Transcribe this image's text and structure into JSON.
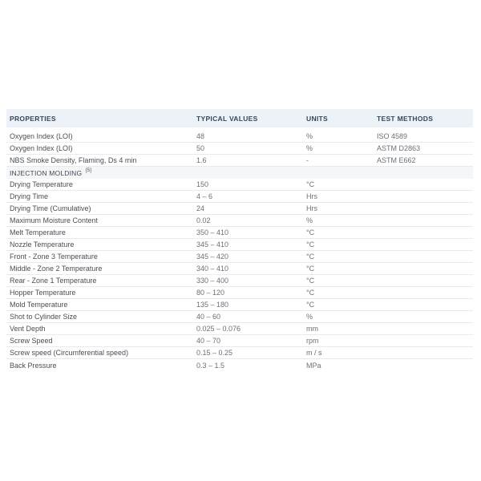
{
  "colors": {
    "header_bg": "#edf2f8",
    "section_bg": "#f5f6f8",
    "border": "#e8ebee",
    "header_text": "#33475c",
    "section_text": "#3d4a57",
    "property_text": "#4a4f54",
    "value_text": "#6b7178"
  },
  "table": {
    "columns": [
      {
        "label": "PROPERTIES"
      },
      {
        "label": "TYPICAL VALUES"
      },
      {
        "label": "UNITS"
      },
      {
        "label": "TEST METHODS"
      }
    ],
    "rows": [
      {
        "kind": "data",
        "property": "Oxygen Index (LOI)",
        "value": "48",
        "unit": "%",
        "method": "ISO 4589"
      },
      {
        "kind": "data",
        "property": "Oxygen Index (LOI)",
        "value": "50",
        "unit": "%",
        "method": "ASTM D2863"
      },
      {
        "kind": "data",
        "property": "NBS Smoke Density, Flaming, Ds 4 min",
        "value": "1.6",
        "unit": "-",
        "method": "ASTM E662"
      },
      {
        "kind": "section",
        "property": "INJECTION MOLDING",
        "superscript": "[5]"
      },
      {
        "kind": "data",
        "property": "Drying Temperature",
        "value": "150",
        "unit": "°C",
        "method": ""
      },
      {
        "kind": "data",
        "property": "Drying Time",
        "value": "4 – 6",
        "unit": "Hrs",
        "method": ""
      },
      {
        "kind": "data",
        "property": "Drying Time (Cumulative)",
        "value": "24",
        "unit": "Hrs",
        "method": ""
      },
      {
        "kind": "data",
        "property": "Maximum Moisture Content",
        "value": "0.02",
        "unit": "%",
        "method": ""
      },
      {
        "kind": "data",
        "property": "Melt Temperature",
        "value": "350 – 410",
        "unit": "°C",
        "method": ""
      },
      {
        "kind": "data",
        "property": "Nozzle Temperature",
        "value": "345 – 410",
        "unit": "°C",
        "method": ""
      },
      {
        "kind": "data",
        "property": "Front - Zone 3 Temperature",
        "value": "345 – 420",
        "unit": "°C",
        "method": ""
      },
      {
        "kind": "data",
        "property": "Middle - Zone 2 Temperature",
        "value": "340 – 410",
        "unit": "°C",
        "method": ""
      },
      {
        "kind": "data",
        "property": "Rear - Zone 1 Temperature",
        "value": "330 – 400",
        "unit": "°C",
        "method": ""
      },
      {
        "kind": "data",
        "property": "Hopper Temperature",
        "value": "80 – 120",
        "unit": "°C",
        "method": ""
      },
      {
        "kind": "data",
        "property": "Mold Temperature",
        "value": "135 – 180",
        "unit": "°C",
        "method": ""
      },
      {
        "kind": "data",
        "property": "Shot to Cylinder Size",
        "value": "40 – 60",
        "unit": "%",
        "method": ""
      },
      {
        "kind": "data",
        "property": "Vent Depth",
        "value": "0.025 – 0.076",
        "unit": "mm",
        "method": ""
      },
      {
        "kind": "data",
        "property": "Screw Speed",
        "value": "40 – 70",
        "unit": "rpm",
        "method": ""
      },
      {
        "kind": "data",
        "property": "Screw speed (Circumferential speed)",
        "value": "0.15 – 0.25",
        "unit": "m / s",
        "method": ""
      },
      {
        "kind": "data",
        "property": "Back Pressure",
        "value": "0.3 – 1.5",
        "unit": "MPa",
        "method": ""
      }
    ]
  }
}
